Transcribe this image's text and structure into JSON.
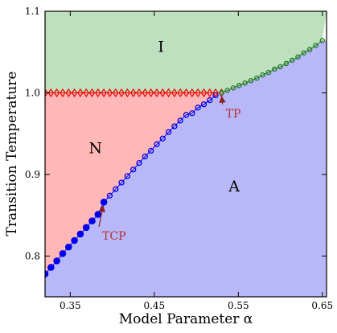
{
  "chart_data": {
    "type": "scatter",
    "xlabel": "Model Parameter α",
    "ylabel": "Transition Temperature",
    "xlim": [
      0.32,
      0.655
    ],
    "ylim": [
      0.75,
      1.1
    ],
    "xticks": [
      0.35,
      0.45,
      0.55,
      0.65
    ],
    "xtick_labels": [
      "0.35",
      "0.45",
      "0.55",
      "0.65"
    ],
    "yticks": [
      0.8,
      0.9,
      1.0,
      1.1
    ],
    "ytick_labels": [
      "0.8",
      "0.9",
      "1.0",
      "1.1"
    ],
    "grid": false,
    "regions": [
      {
        "label": "I",
        "color": "#bfe0bf",
        "label_x": 0.458,
        "label_y": 1.057
      },
      {
        "label": "N",
        "color": "#ffb7b7",
        "label_x": 0.38,
        "label_y": 0.933
      },
      {
        "label": "A",
        "color": "#b8b8f8",
        "label_x": 0.545,
        "label_y": 0.886
      }
    ],
    "series": [
      {
        "marker": "filled-circle",
        "color": "#0000ee",
        "x": [
          0.32,
          0.327,
          0.334,
          0.341,
          0.348,
          0.355,
          0.362,
          0.369,
          0.376,
          0.383,
          0.39
        ],
        "y": [
          0.778,
          0.786,
          0.794,
          0.803,
          0.811,
          0.819,
          0.827,
          0.835,
          0.843,
          0.851,
          0.866
        ]
      },
      {
        "marker": "open-circle",
        "color": "#0000ee",
        "x": [
          0.39,
          0.397,
          0.404,
          0.411,
          0.418,
          0.425,
          0.432,
          0.439,
          0.446,
          0.453,
          0.46,
          0.467,
          0.474,
          0.481,
          0.488,
          0.495,
          0.502,
          0.509,
          0.516,
          0.523
        ],
        "y": [
          0.866,
          0.874,
          0.882,
          0.89,
          0.898,
          0.906,
          0.914,
          0.922,
          0.929,
          0.937,
          0.944,
          0.952,
          0.959,
          0.966,
          0.973,
          0.975,
          0.982,
          0.986,
          0.991,
          0.997
        ]
      },
      {
        "marker": "open-diamond",
        "color": "#ee0000",
        "x": [
          0.32,
          0.327,
          0.334,
          0.341,
          0.348,
          0.355,
          0.362,
          0.369,
          0.376,
          0.383,
          0.39,
          0.397,
          0.404,
          0.411,
          0.418,
          0.425,
          0.432,
          0.439,
          0.446,
          0.453,
          0.46,
          0.467,
          0.474,
          0.481,
          0.488,
          0.495,
          0.502,
          0.509,
          0.516,
          0.523,
          0.53
        ],
        "y": [
          1.0,
          1.0,
          1.0,
          1.0,
          1.0,
          1.0,
          1.0,
          1.0,
          1.0,
          1.0,
          1.0,
          1.0,
          1.0,
          1.0,
          1.0,
          1.0,
          1.0,
          1.0,
          1.0,
          1.0,
          1.0,
          1.0,
          1.0,
          1.0,
          1.0,
          1.0,
          1.0,
          1.0,
          1.0,
          1.0,
          1.0
        ]
      },
      {
        "marker": "open-circle",
        "color": "#1f7a1f",
        "x": [
          0.53,
          0.537,
          0.544,
          0.551,
          0.558,
          0.565,
          0.572,
          0.579,
          0.586,
          0.593,
          0.6,
          0.607,
          0.614,
          0.621,
          0.628,
          0.635,
          0.642,
          0.65
        ],
        "y": [
          1.0,
          1.003,
          1.006,
          1.009,
          1.012,
          1.015,
          1.018,
          1.022,
          1.025,
          1.029,
          1.032,
          1.036,
          1.04,
          1.044,
          1.049,
          1.053,
          1.058,
          1.064
        ]
      }
    ],
    "annotations": [
      {
        "text": "TCP",
        "point_x": 0.39,
        "point_y": 0.866,
        "text_x": 0.388,
        "text_y": 0.82
      },
      {
        "text": "TP",
        "point_x": 0.53,
        "point_y": 1.0,
        "text_x": 0.535,
        "text_y": 0.97
      }
    ]
  }
}
